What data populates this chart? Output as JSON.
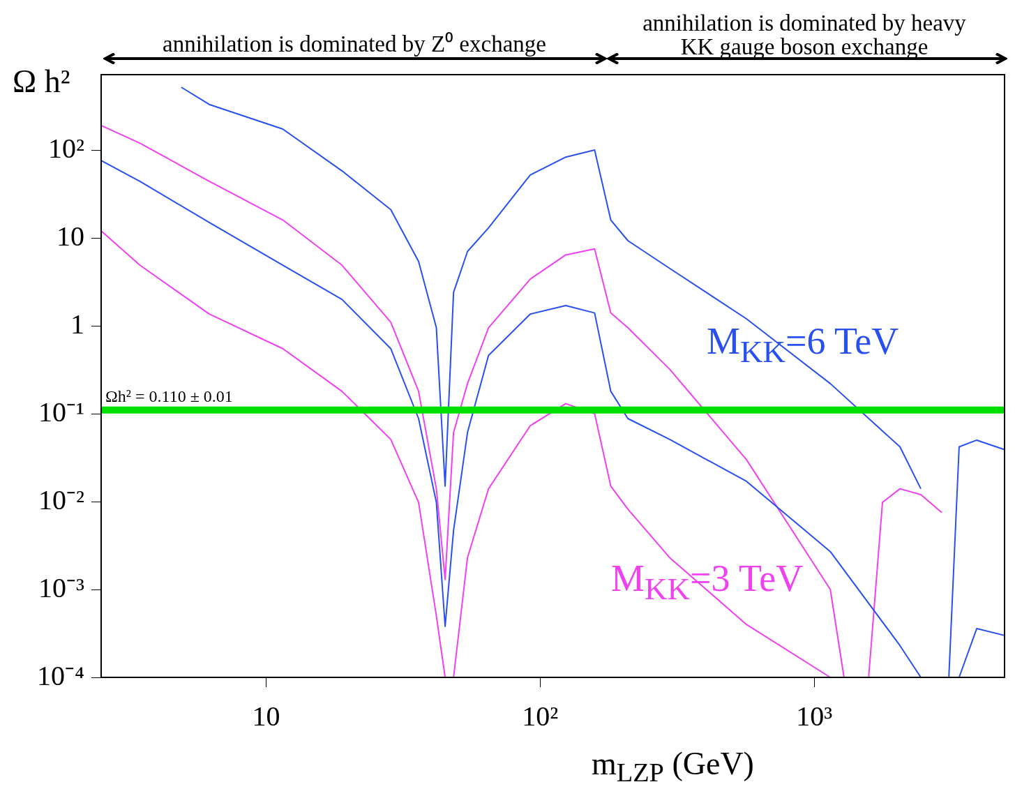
{
  "chart_data": {
    "type": "line",
    "xlabel": "m$_{LZP}$ (GeV)",
    "ylabel": "Ω h²",
    "log": "xy",
    "legend": false,
    "xlim": [
      2.5,
      4950
    ],
    "ylim": [
      0.0001,
      720
    ],
    "xticks": [
      {
        "value": 10,
        "label": "10"
      },
      {
        "value": 100,
        "label": "10²"
      },
      {
        "value": 1000,
        "label": "10³"
      }
    ],
    "yticks": [
      {
        "value": 0.0001,
        "label": "10⁻⁴"
      },
      {
        "value": 0.001,
        "label": "10⁻³"
      },
      {
        "value": 0.01,
        "label": "10⁻²"
      },
      {
        "value": 0.1,
        "label": "10⁻¹"
      },
      {
        "value": 1,
        "label": "1"
      },
      {
        "value": 10,
        "label": "10"
      },
      {
        "value": 100,
        "label": "10²"
      }
    ],
    "series": [
      {
        "name": "M$_{KK}$=6 TeV",
        "color": "#2850f0",
        "x": [
          4.9,
          6.2,
          11.5,
          18.9,
          28.5,
          36,
          41.8,
          45,
          48.3,
          54.3,
          64.8,
          92,
          124,
          158,
          181,
          209,
          297,
          566,
          1145,
          2056,
          2450,
          2760,
          3100,
          3380,
          3920,
          4950
        ],
        "values": [
          518,
          330,
          173,
          58,
          21,
          5.4,
          0.95,
          0.015,
          2.4,
          7,
          13,
          52,
          83,
          100,
          16,
          9.3,
          4.5,
          1.2,
          0.22,
          0.042,
          0.014,
          null,
          0.0001,
          0.042,
          0.05,
          0.039
        ]
      },
      {
        "color": "#2850f0",
        "x": [
          2.5,
          3.46,
          6.2,
          11.5,
          18.9,
          28.5,
          36,
          41.8,
          45,
          48.3,
          54.3,
          64.8,
          92,
          124,
          158,
          181,
          209,
          297,
          566,
          1145,
          2056,
          2450,
          2760,
          3100,
          3380,
          3920,
          4950
        ],
        "values": [
          76,
          44,
          15,
          4.9,
          2,
          0.55,
          0.088,
          0.0098,
          0.00038,
          0.0047,
          0.061,
          0.46,
          1.36,
          1.7,
          1.4,
          0.18,
          0.088,
          0.051,
          0.017,
          0.0027,
          0.00023,
          0.0001,
          null,
          0.0001,
          0.0001,
          0.00036,
          0.0003
        ]
      },
      {
        "name": "M$_{KK}$=3 TeV",
        "color": "#f040f0",
        "x": [
          2.5,
          3.46,
          6.2,
          11.5,
          18.9,
          28.5,
          36,
          41.8,
          45,
          48.3,
          54.3,
          64.8,
          92,
          124,
          158,
          181,
          209,
          297,
          566,
          1145,
          1285,
          1450,
          1580,
          1775,
          2056,
          2450,
          2920
        ],
        "values": [
          190,
          120,
          44,
          16,
          4.9,
          1.1,
          0.18,
          0.014,
          0.0013,
          0.061,
          0.22,
          0.95,
          3.4,
          6.4,
          7.5,
          1.4,
          0.95,
          0.32,
          0.03,
          0.001,
          0.0001,
          null,
          0.0001,
          0.0098,
          0.014,
          0.012,
          0.0075
        ]
      },
      {
        "color": "#f040f0",
        "x": [
          2.5,
          3.46,
          6.2,
          11.5,
          18.9,
          28.5,
          36,
          41.8,
          45,
          48.3,
          54.3,
          64.8,
          92,
          124,
          158,
          181,
          209,
          297,
          566,
          1145
        ],
        "values": [
          12,
          4.9,
          1.36,
          0.55,
          0.18,
          0.051,
          0.0098,
          0.0005,
          0.0001,
          0.0001,
          0.0023,
          0.014,
          0.073,
          0.13,
          0.1,
          0.015,
          0.0082,
          0.0023,
          0.0004,
          0.0001
        ]
      }
    ],
    "ref_lines": [
      {
        "axis": "y",
        "value": 0.11,
        "label": "Ωh² = 0.110 ± 0.01",
        "color": "#00e000"
      }
    ],
    "annotations": [
      "annihilation is dominated by Z⁰ exchange",
      "annihilation is dominated by heavy KK gauge boson exchange"
    ]
  }
}
